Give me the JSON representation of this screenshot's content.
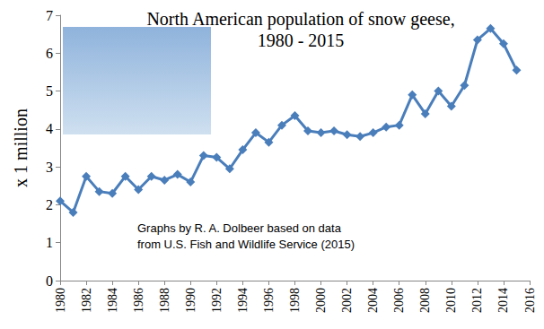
{
  "chart_data": {
    "type": "line",
    "title": "North American population of snow geese,\n1980 - 2015",
    "annotation": "Graphs by R. A. Dolbeer based on data\nfrom U.S. Fish and Wildlife Service (2015)",
    "y_label": "x 1 million",
    "x": [
      1980,
      1981,
      1982,
      1983,
      1984,
      1985,
      1986,
      1987,
      1988,
      1989,
      1990,
      1991,
      1992,
      1993,
      1994,
      1995,
      1996,
      1997,
      1998,
      1999,
      2000,
      2001,
      2002,
      2003,
      2004,
      2005,
      2006,
      2007,
      2008,
      2009,
      2010,
      2011,
      2012,
      2013,
      2014,
      2015
    ],
    "values": [
      2.1,
      1.8,
      2.75,
      2.35,
      2.3,
      2.75,
      2.4,
      2.75,
      2.65,
      2.8,
      2.6,
      3.3,
      3.25,
      2.95,
      3.45,
      3.9,
      3.65,
      4.1,
      4.35,
      3.95,
      3.9,
      3.95,
      3.85,
      3.8,
      3.9,
      4.05,
      4.1,
      4.9,
      4.4,
      5.0,
      4.6,
      5.15,
      6.35,
      6.65,
      6.25,
      5.55
    ],
    "color": "#4a7ebb",
    "marker": "diamond",
    "xlim": [
      1980,
      2016
    ],
    "xticks": [
      1980,
      1982,
      1984,
      1986,
      1988,
      1990,
      1992,
      1994,
      1996,
      1998,
      2000,
      2002,
      2004,
      2006,
      2008,
      2010,
      2012,
      2014,
      2016
    ],
    "ylim": [
      0,
      7
    ],
    "yticks": [
      0,
      1,
      2,
      3,
      4,
      5,
      6,
      7
    ],
    "grid": false
  }
}
